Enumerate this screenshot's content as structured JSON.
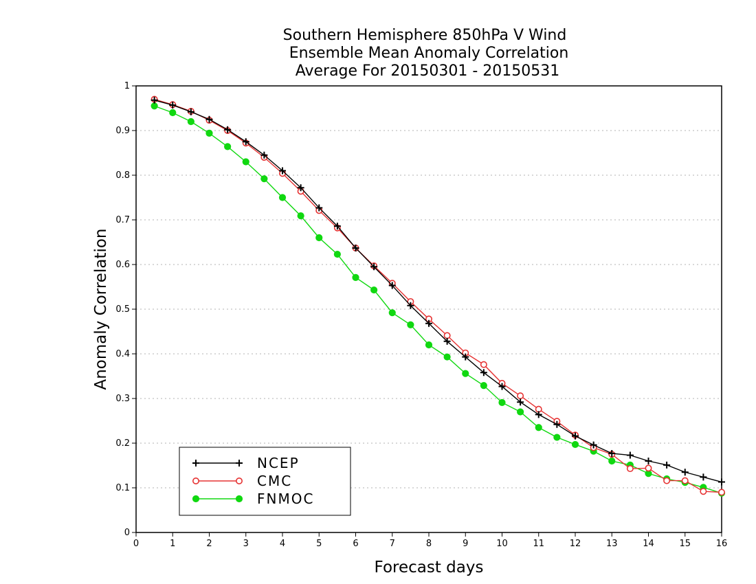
{
  "chart_data": {
    "type": "line",
    "title": [
      "Southern Hemisphere 850hPa V Wind",
      "Ensemble Mean Anomaly Correlation",
      "Average For 20150301 - 20150531"
    ],
    "xlabel": "Forecast days",
    "ylabel": "Anomaly Correlation",
    "xlim": [
      0,
      16
    ],
    "ylim": [
      0,
      1
    ],
    "xticks": [
      0,
      1,
      2,
      3,
      4,
      5,
      6,
      7,
      8,
      9,
      10,
      11,
      12,
      13,
      14,
      15,
      16
    ],
    "xtick_labels": [
      "0",
      "1",
      "2",
      "3",
      "4",
      "5",
      "6",
      "7",
      "8",
      "9",
      "10",
      "11",
      "12",
      "13",
      "14",
      "15",
      "16"
    ],
    "yticks": [
      0,
      0.1,
      0.2,
      0.3,
      0.4,
      0.5,
      0.6,
      0.7,
      0.8,
      0.9,
      1
    ],
    "ytick_labels": [
      "0",
      "0.1",
      "0.2",
      "0.3",
      "0.4",
      "0.5",
      "0.6",
      "0.7",
      "0.8",
      "0.9",
      "1"
    ],
    "grid": true,
    "legend_position": "bottom-left",
    "x": [
      0.5,
      1,
      1.5,
      2,
      2.5,
      3,
      3.5,
      4,
      4.5,
      5,
      5.5,
      6,
      6.5,
      7,
      7.5,
      8,
      8.5,
      9,
      9.5,
      10,
      10.5,
      11,
      11.5,
      12,
      12.5,
      13,
      13.5,
      14,
      14.5,
      15,
      15.5,
      16
    ],
    "series": [
      {
        "name": "NCEP",
        "color": "#000000",
        "marker": "plus",
        "values": [
          0.968,
          0.957,
          0.942,
          0.925,
          0.902,
          0.875,
          0.845,
          0.81,
          0.772,
          0.727,
          0.686,
          0.637,
          0.595,
          0.553,
          0.508,
          0.468,
          0.428,
          0.393,
          0.358,
          0.327,
          0.292,
          0.264,
          0.242,
          0.216,
          0.196,
          0.177,
          0.173,
          0.16,
          0.151,
          0.135,
          0.124,
          0.113
        ]
      },
      {
        "name": "CMC",
        "color": "#e63232",
        "marker": "open-circle",
        "values": [
          0.97,
          0.958,
          0.943,
          0.923,
          0.9,
          0.872,
          0.84,
          0.804,
          0.764,
          0.721,
          0.682,
          0.637,
          0.597,
          0.558,
          0.517,
          0.478,
          0.441,
          0.402,
          0.376,
          0.334,
          0.306,
          0.276,
          0.249,
          0.218,
          0.19,
          0.175,
          0.143,
          0.144,
          0.116,
          0.116,
          0.092,
          0.09
        ]
      },
      {
        "name": "FNMOC",
        "color": "#10d810",
        "marker": "filled-circle",
        "values": [
          0.955,
          0.94,
          0.92,
          0.894,
          0.864,
          0.83,
          0.792,
          0.75,
          0.709,
          0.66,
          0.623,
          0.571,
          0.543,
          0.492,
          0.465,
          0.42,
          0.393,
          0.356,
          0.329,
          0.291,
          0.27,
          0.235,
          0.213,
          0.197,
          0.182,
          0.16,
          0.151,
          0.132,
          0.12,
          0.112,
          0.101,
          0.088
        ]
      }
    ]
  }
}
